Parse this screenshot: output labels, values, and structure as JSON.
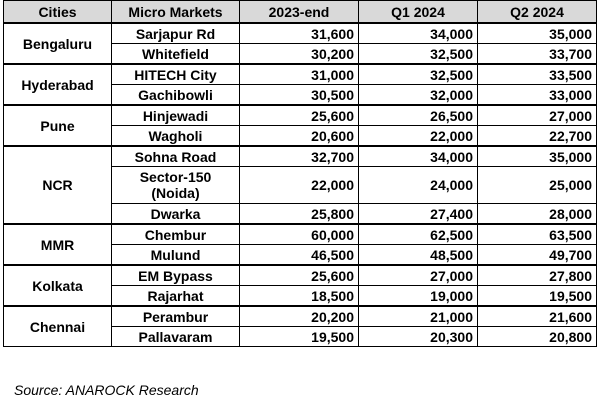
{
  "table": {
    "headers": [
      "Cities",
      "Micro Markets",
      "2023-end",
      "Q1 2024",
      "Q2 2024"
    ],
    "groups": [
      {
        "city": "Bengaluru",
        "rows": [
          {
            "market": "Sarjapur Rd",
            "v2023": "31,600",
            "q1": "34,000",
            "q2": "35,000"
          },
          {
            "market": "Whitefield",
            "v2023": "30,200",
            "q1": "32,500",
            "q2": "33,700"
          }
        ]
      },
      {
        "city": "Hyderabad",
        "rows": [
          {
            "market": "HITECH City",
            "v2023": "31,000",
            "q1": "32,500",
            "q2": "33,500"
          },
          {
            "market": "Gachibowli",
            "v2023": "30,500",
            "q1": "32,000",
            "q2": "33,000"
          }
        ]
      },
      {
        "city": "Pune",
        "rows": [
          {
            "market": "Hinjewadi",
            "v2023": "25,600",
            "q1": "26,500",
            "q2": "27,000"
          },
          {
            "market": "Wagholi",
            "v2023": "20,600",
            "q1": "22,000",
            "q2": "22,700"
          }
        ]
      },
      {
        "city": "NCR",
        "rows": [
          {
            "market": "Sohna Road",
            "v2023": "32,700",
            "q1": "34,000",
            "q2": "35,000"
          },
          {
            "market": "Sector-150 (Noida)",
            "v2023": "22,000",
            "q1": "24,000",
            "q2": "25,000"
          },
          {
            "market": "Dwarka",
            "v2023": "25,800",
            "q1": "27,400",
            "q2": "28,000"
          }
        ]
      },
      {
        "city": "MMR",
        "rows": [
          {
            "market": "Chembur",
            "v2023": "60,000",
            "q1": "62,500",
            "q2": "63,500"
          },
          {
            "market": "Mulund",
            "v2023": "46,500",
            "q1": "48,500",
            "q2": "49,700"
          }
        ]
      },
      {
        "city": "Kolkata",
        "rows": [
          {
            "market": "EM Bypass",
            "v2023": "25,600",
            "q1": "27,000",
            "q2": "27,800"
          },
          {
            "market": "Rajarhat",
            "v2023": "18,500",
            "q1": "19,000",
            "q2": "19,500"
          }
        ]
      },
      {
        "city": "Chennai",
        "rows": [
          {
            "market": "Perambur",
            "v2023": "20,200",
            "q1": "21,000",
            "q2": "21,600"
          },
          {
            "market": "Pallavaram",
            "v2023": "19,500",
            "q1": "20,300",
            "q2": "20,800"
          }
        ]
      }
    ]
  },
  "source": "Source: ANAROCK Research",
  "colors": {
    "header_bg": "#d9d9d9",
    "border": "#000000",
    "text": "#000000"
  }
}
